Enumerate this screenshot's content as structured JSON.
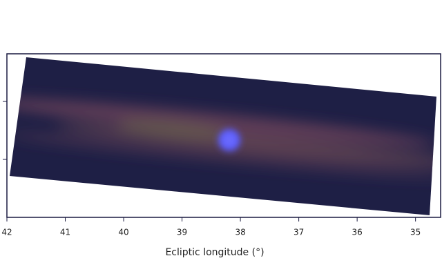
{
  "chart_data": {
    "type": "image",
    "x_label": "Ecliptic longitude (°)",
    "xlim": [
      42,
      34.57
    ],
    "xticks": [
      42,
      41,
      40,
      39,
      38,
      37,
      36,
      35
    ]
  }
}
